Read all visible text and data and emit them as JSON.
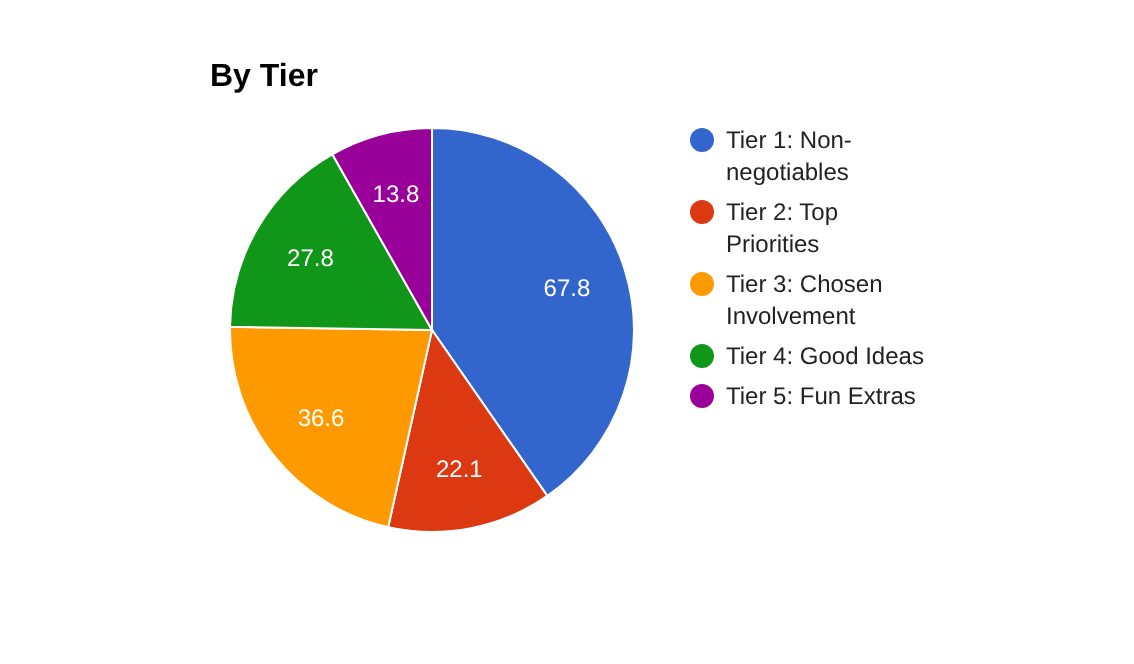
{
  "chart_data": {
    "type": "pie",
    "title": "By Tier",
    "categories": [
      "Tier 1: Non-negotiables",
      "Tier 2: Top Priorities",
      "Tier 3: Chosen Involvement",
      "Tier 4: Good Ideas",
      "Tier 5: Fun Extras"
    ],
    "values": [
      67.8,
      22.1,
      36.6,
      27.8,
      13.8
    ],
    "colors": [
      "#3366cc",
      "#dc3912",
      "#ff9900",
      "#109618",
      "#990099"
    ],
    "data_labels": true,
    "legend": "right"
  }
}
